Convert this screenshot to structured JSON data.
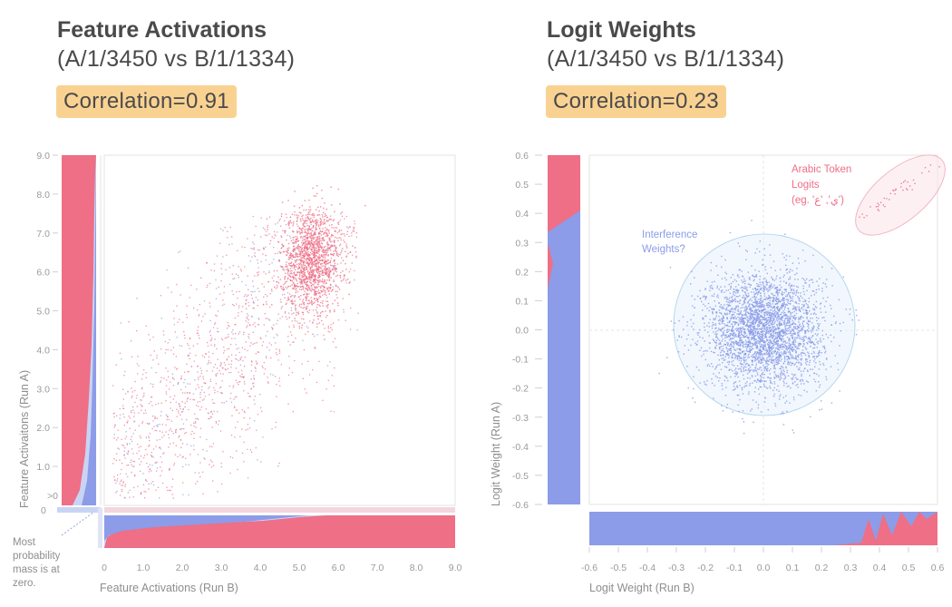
{
  "colors": {
    "red": "#ee6f86",
    "blue": "#8c9ce8",
    "light_blue": "#c9d4f4",
    "title": "#4a4a4a",
    "badge": "#f9d292",
    "axis": "#9a9a9a",
    "pink_note": "#ee6f86",
    "blue_note": "#8c9ce8"
  },
  "left": {
    "title": "Feature Activations",
    "subtitle": "(A/1/3450 vs B/1/1334)",
    "correlation": "Correlation=0.91",
    "zero_label": "0",
    "gt0_label": ">0",
    "note_lines": [
      "Most",
      "probability",
      "mass is at",
      "zero."
    ]
  },
  "right": {
    "title": "Logit Weights",
    "subtitle": "(A/1/3450 vs B/1/1334)",
    "correlation": "Correlation=0.23",
    "annot_arabic": [
      "Arabic Token",
      "Logits",
      "(eg. 'ي', 'ع')"
    ],
    "annot_interf": [
      "Interference",
      "Weights?"
    ]
  },
  "chart_data": [
    {
      "type": "scatter",
      "title": "Feature Activations",
      "xlabel": "Feature Activations (Run B)",
      "ylabel": "Feature Activaitons (Run A)",
      "xlim": [
        0,
        9
      ],
      "ylim": [
        0,
        9
      ],
      "x_ticks": [
        "0",
        "1.0",
        "2.0",
        "3.0",
        "4.0",
        "5.0",
        "6.0",
        "7.0",
        "8.0",
        "9.0"
      ],
      "y_ticks": [
        "0",
        "1.0",
        "2.0",
        "3.0",
        "4.0",
        "5.0",
        "6.0",
        "7.0",
        "8.0",
        "9.0"
      ],
      "correlation": 0.91,
      "clusters": [
        {
          "description": "dense",
          "center": [
            5.3,
            6.3
          ],
          "spread": [
            0.38,
            0.65
          ],
          "points": 1400
        },
        {
          "description": "diffuse",
          "x_range": [
            0.2,
            6.5
          ],
          "y_range": [
            0.2,
            7.5
          ],
          "points": 1800
        }
      ]
    },
    {
      "type": "scatter",
      "title": "Logit Weights",
      "xlabel": "Logit Weight (Run B)",
      "ylabel": "Logit Weight (Run A)",
      "xlim": [
        -0.6,
        0.6
      ],
      "ylim": [
        -0.6,
        0.6
      ],
      "x_ticks": [
        "-0.6",
        "-0.5",
        "-0.4",
        "-0.3",
        "-0.2",
        "-0.1",
        "0.0",
        "0.1",
        "0.2",
        "0.3",
        "0.4",
        "0.5",
        "0.6"
      ],
      "y_ticks": [
        "0.6",
        "0.5",
        "0.4",
        "0.3",
        "0.2",
        "0.1",
        "0.0",
        "-0.1",
        "-0.2",
        "-0.3",
        "-0.4",
        "-0.5",
        "-0.6"
      ],
      "correlation": 0.23,
      "clusters": [
        {
          "description": "Interference Weights?",
          "center": [
            0.0,
            0.0
          ],
          "spread": [
            0.1,
            0.1
          ],
          "points": 3200,
          "color": "blue"
        },
        {
          "description": "Arabic Token Logits",
          "x_range": [
            0.33,
            0.6
          ],
          "y_range": [
            0.38,
            0.58
          ],
          "points": 40,
          "color": "red"
        }
      ]
    }
  ]
}
